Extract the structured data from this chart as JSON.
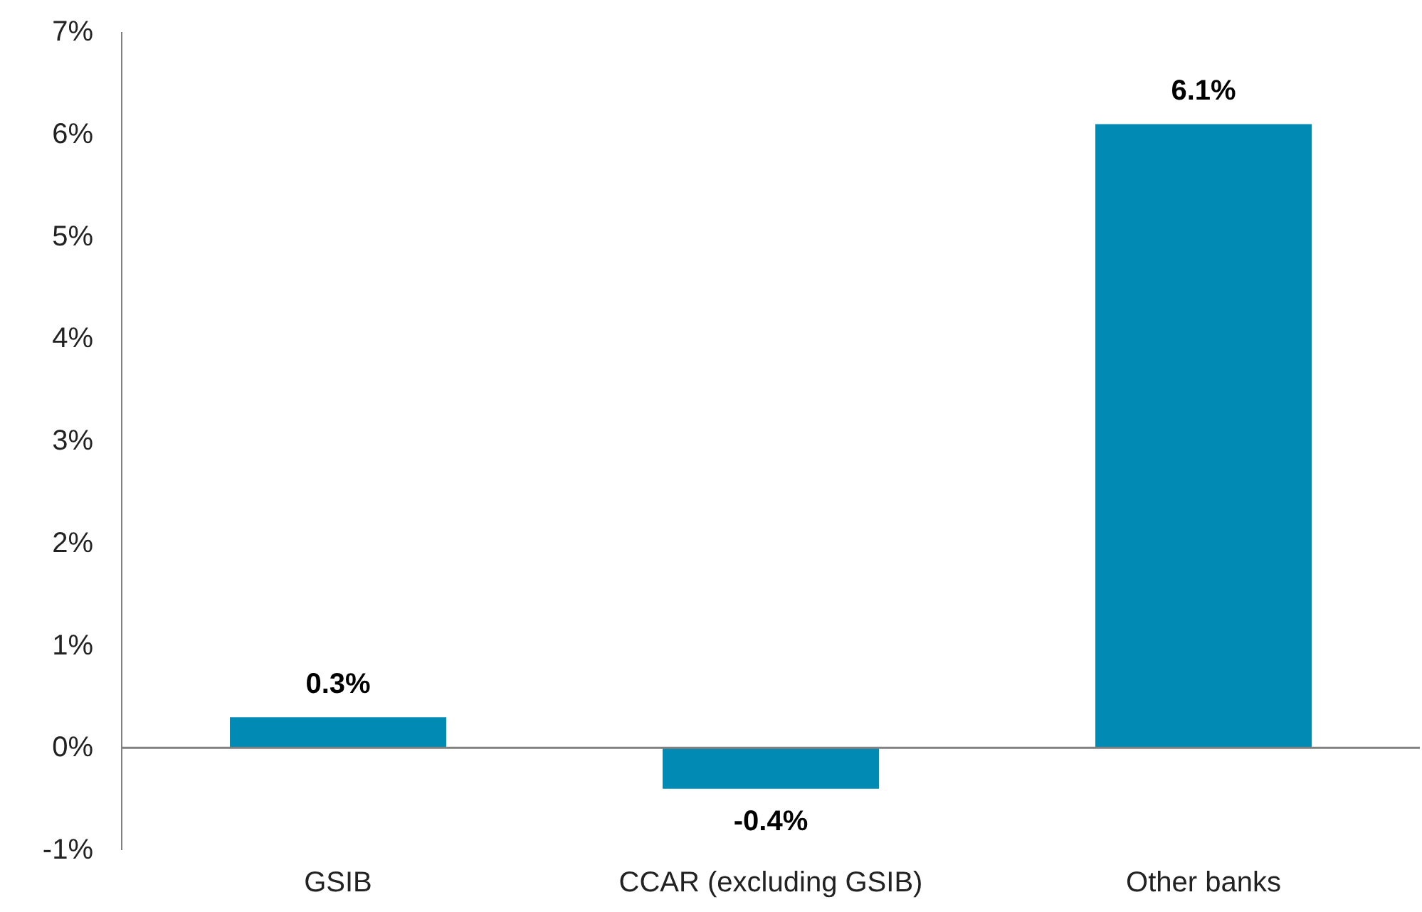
{
  "chart_data": {
    "type": "bar",
    "categories": [
      "GSIB",
      "CCAR (excluding GSIB)",
      "Other banks"
    ],
    "values": [
      0.3,
      -0.4,
      6.1
    ],
    "color": "#008ab4",
    "value_labels": [
      "0.3%",
      "-0.4%",
      "6.1%"
    ],
    "ylim": [
      -1,
      7
    ],
    "yticks": [
      {
        "value": -1,
        "label": "-1%"
      },
      {
        "value": 0,
        "label": "0%"
      },
      {
        "value": 1,
        "label": "1%"
      },
      {
        "value": 2,
        "label": "2%"
      },
      {
        "value": 3,
        "label": "3%"
      },
      {
        "value": 4,
        "label": "4%"
      },
      {
        "value": 5,
        "label": "5%"
      },
      {
        "value": 6,
        "label": "6%"
      },
      {
        "value": 7,
        "label": "7%"
      }
    ]
  }
}
